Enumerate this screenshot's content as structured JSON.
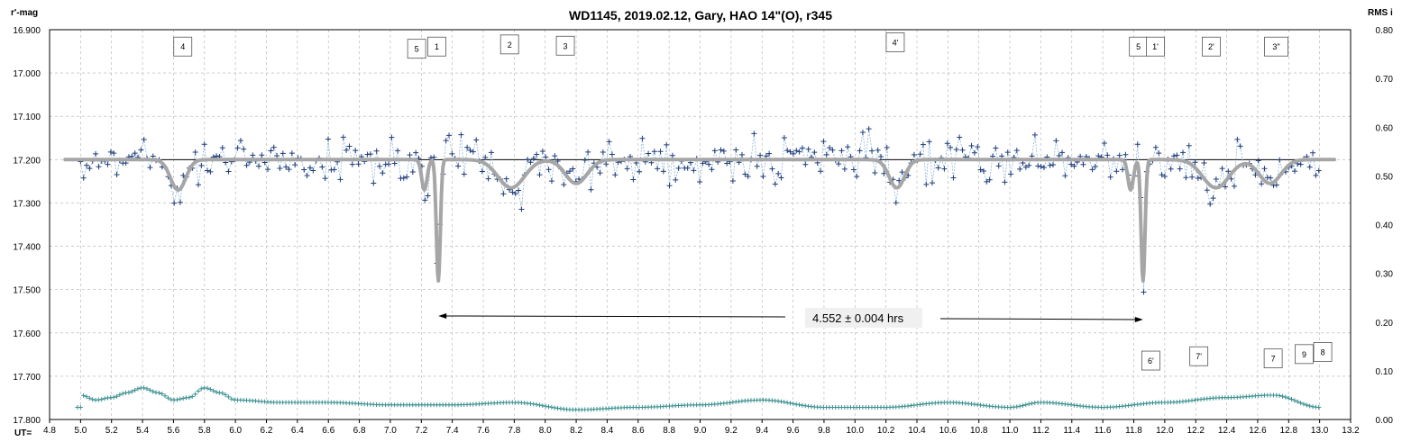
{
  "chart_data": {
    "type": "scatter",
    "title": "WD1145, 2019.02.12, Gary, HAO 14\"(O), r345",
    "ylabel_left": "r'-mag",
    "ylabel_right": "RMS i",
    "xlabel": "UT=",
    "xlim": [
      4.8,
      13.2
    ],
    "ylim_left": [
      17.8,
      16.9
    ],
    "ylim_right": [
      0.0,
      0.8
    ],
    "left_ticks": [
      "16.900",
      "17.000",
      "17.100",
      "17.200",
      "17.300",
      "17.400",
      "17.500",
      "17.600",
      "17.700",
      "17.800"
    ],
    "right_ticks": [
      "0.80",
      "0.70",
      "0.60",
      "0.50",
      "0.40",
      "0.30",
      "0.20",
      "0.10",
      "0.00"
    ],
    "x_ticks": [
      "4.8",
      "5.0",
      "5.2",
      "5.4",
      "5.6",
      "5.8",
      "6.0",
      "6.2",
      "6.4",
      "6.6",
      "6.8",
      "7.0",
      "7.2",
      "7.4",
      "7.6",
      "7.8",
      "8.0",
      "8.2",
      "8.4",
      "8.6",
      "8.8",
      "9.0",
      "9.2",
      "9.4",
      "9.6",
      "9.8",
      "10.0",
      "10.2",
      "10.4",
      "10.6",
      "10.8",
      "11.0",
      "11.2",
      "11.4",
      "11.6",
      "11.8",
      "12.0",
      "12.2",
      "12.4",
      "12.6",
      "12.8",
      "13.0",
      "13.2"
    ],
    "grid": true,
    "baseline_mag": 17.2,
    "model_dips": [
      {
        "x": 5.63,
        "depth": 0.07,
        "width": 0.07
      },
      {
        "x": 7.22,
        "depth": 0.07,
        "width": 0.025
      },
      {
        "x": 7.31,
        "depth": 0.28,
        "width": 0.018
      },
      {
        "x": 7.78,
        "depth": 0.065,
        "width": 0.12
      },
      {
        "x": 8.2,
        "depth": 0.055,
        "width": 0.1
      },
      {
        "x": 10.27,
        "depth": 0.065,
        "width": 0.07
      },
      {
        "x": 11.78,
        "depth": 0.07,
        "width": 0.025
      },
      {
        "x": 11.86,
        "depth": 0.28,
        "width": 0.018
      },
      {
        "x": 12.33,
        "depth": 0.065,
        "width": 0.12
      },
      {
        "x": 12.68,
        "depth": 0.055,
        "width": 0.1
      }
    ],
    "rms_points": [
      {
        "x": 5.0,
        "y": 0.05
      },
      {
        "x": 5.1,
        "y": 0.04
      },
      {
        "x": 5.2,
        "y": 0.045
      },
      {
        "x": 5.3,
        "y": 0.055
      },
      {
        "x": 5.4,
        "y": 0.065
      },
      {
        "x": 5.5,
        "y": 0.055
      },
      {
        "x": 5.6,
        "y": 0.04
      },
      {
        "x": 5.7,
        "y": 0.045
      },
      {
        "x": 5.8,
        "y": 0.065
      },
      {
        "x": 5.9,
        "y": 0.055
      },
      {
        "x": 6.0,
        "y": 0.04
      },
      {
        "x": 6.3,
        "y": 0.035
      },
      {
        "x": 6.6,
        "y": 0.035
      },
      {
        "x": 7.0,
        "y": 0.03
      },
      {
        "x": 7.4,
        "y": 0.03
      },
      {
        "x": 7.8,
        "y": 0.035
      },
      {
        "x": 8.2,
        "y": 0.02
      },
      {
        "x": 8.6,
        "y": 0.025
      },
      {
        "x": 9.0,
        "y": 0.03
      },
      {
        "x": 9.4,
        "y": 0.04
      },
      {
        "x": 9.8,
        "y": 0.025
      },
      {
        "x": 10.2,
        "y": 0.025
      },
      {
        "x": 10.6,
        "y": 0.035
      },
      {
        "x": 11.0,
        "y": 0.025
      },
      {
        "x": 11.2,
        "y": 0.035
      },
      {
        "x": 11.6,
        "y": 0.025
      },
      {
        "x": 12.0,
        "y": 0.035
      },
      {
        "x": 12.4,
        "y": 0.045
      },
      {
        "x": 12.7,
        "y": 0.05
      },
      {
        "x": 13.0,
        "y": 0.025
      }
    ],
    "event_labels": [
      {
        "text": "4",
        "x": 5.66,
        "mag": 16.94
      },
      {
        "text": "5",
        "x": 7.17,
        "mag": 16.945
      },
      {
        "text": "1",
        "x": 7.3,
        "mag": 16.94
      },
      {
        "text": "2",
        "x": 7.77,
        "mag": 16.935
      },
      {
        "text": "3",
        "x": 8.13,
        "mag": 16.938
      },
      {
        "text": "4'",
        "x": 10.26,
        "mag": 16.93
      },
      {
        "text": "5",
        "x": 11.83,
        "mag": 16.94
      },
      {
        "text": "1'",
        "x": 11.94,
        "mag": 16.94
      },
      {
        "text": "2'",
        "x": 12.3,
        "mag": 16.94
      },
      {
        "text": "3''",
        "x": 12.72,
        "mag": 16.94
      },
      {
        "text": "6'",
        "x": 11.91,
        "mag": 17.665
      },
      {
        "text": "7'",
        "x": 12.22,
        "mag": 17.655
      },
      {
        "text": "7",
        "x": 12.7,
        "mag": 17.66
      },
      {
        "text": "9",
        "x": 12.9,
        "mag": 17.65
      },
      {
        "text": "8",
        "x": 13.02,
        "mag": 17.645
      }
    ],
    "period_annotation": {
      "text": "4.552 ± 0.004 hrs",
      "x_start": 7.31,
      "x_end": 11.86,
      "mag": 17.565
    },
    "colors": {
      "data": "#1f3d7a",
      "connector": "#8fb4d9",
      "model": "#a6a6a6",
      "rms": "#3a8f8f",
      "grid": "#b0b0b0",
      "baseline": "#000000"
    }
  }
}
